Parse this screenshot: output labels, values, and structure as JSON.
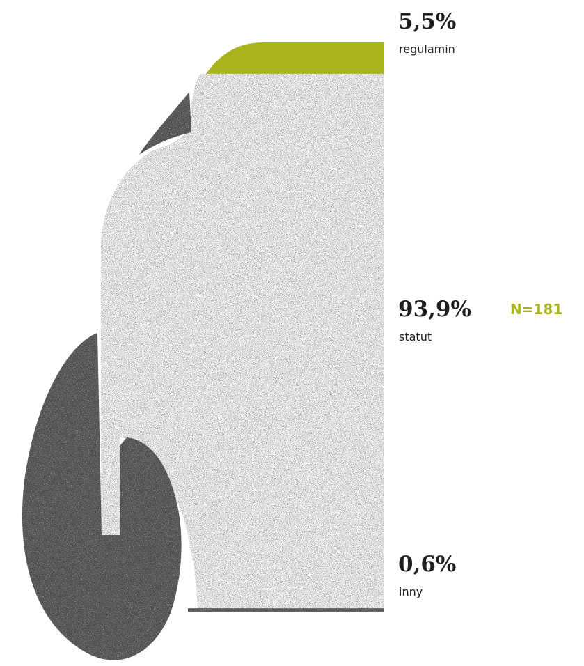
{
  "colors": {
    "accent": "#a9b41c",
    "grain": "#1a1a1a",
    "text": "#1e1e1e"
  },
  "sample": {
    "label": "N=181"
  },
  "chart_data": {
    "type": "bar",
    "orientation": "stacked-vertical",
    "unit": "%",
    "categories": [
      "regulamin",
      "statut",
      "inny"
    ],
    "values": [
      5.5,
      93.9,
      0.6
    ],
    "value_labels": [
      "5,5%",
      "93,9%",
      "0,6%"
    ],
    "colors": [
      "#a9b41c",
      "grain-light",
      "grain-dark"
    ],
    "title": "",
    "xlabel": "",
    "ylabel": ""
  }
}
